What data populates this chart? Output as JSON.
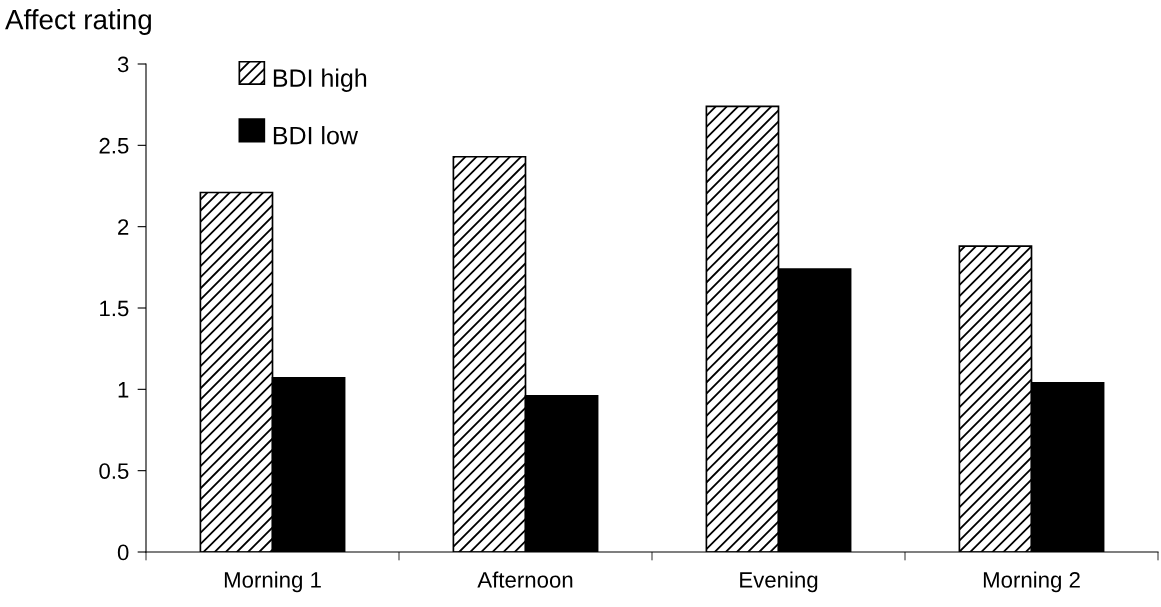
{
  "chart_data": {
    "type": "bar",
    "ylabel": "Affect rating",
    "categories": [
      "Morning 1",
      "Afternoon",
      "Evening",
      "Morning 2"
    ],
    "series": [
      {
        "name": "BDI high",
        "color": "#ffffff",
        "values": [
          2.21,
          2.43,
          2.74,
          1.88
        ]
      },
      {
        "name": "BDI low",
        "color": "#000000",
        "values": [
          1.07,
          0.96,
          1.74,
          1.04
        ]
      }
    ],
    "ylim": [
      0,
      3
    ],
    "yticks": [
      0,
      0.5,
      1,
      1.5,
      2,
      2.5,
      3
    ],
    "grid": false,
    "legend": "top left"
  }
}
